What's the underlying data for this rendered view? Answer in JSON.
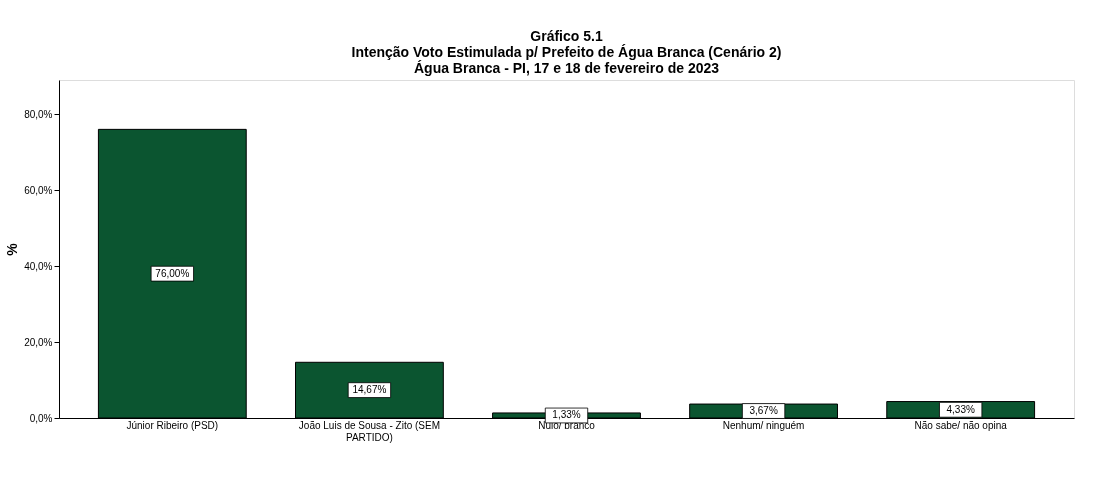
{
  "chart_data": {
    "type": "bar",
    "title": [
      "Gráfico 5.1",
      "Intenção Voto Estimulada p/ Prefeito de Água Branca (Cenário 2)",
      "Água Branca - PI, 17 e 18 de fevereiro de 2023"
    ],
    "ylabel": "%",
    "categories": [
      "Júnior Ribeiro (PSD)",
      "João Luis de Sousa - Zito (SEM PARTIDO)",
      "Nulo/ branco",
      "Nenhum/ ninguém",
      "Não sabe/ não opina"
    ],
    "values": [
      76.0,
      14.67,
      1.33,
      3.67,
      4.33
    ],
    "value_labels": [
      "76,00%",
      "14,67%",
      "1,33%",
      "3,67%",
      "4,33%"
    ],
    "color": "#0b5530",
    "ylim": [
      0,
      89
    ],
    "yticks": [
      {
        "value": 0,
        "label": "0,0%"
      },
      {
        "value": 20,
        "label": "20,0%"
      },
      {
        "value": 40,
        "label": "40,0%"
      },
      {
        "value": 60,
        "label": "60,0%"
      },
      {
        "value": 80,
        "label": "80,0%"
      }
    ],
    "grid": false
  }
}
